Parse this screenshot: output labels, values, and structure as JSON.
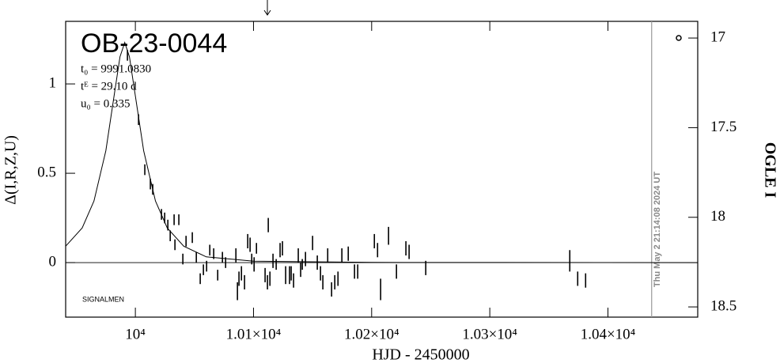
{
  "chart_data": {
    "type": "scatter",
    "title": "OB-23-0044",
    "params": [
      "t₀ = 9991.0830",
      "tᴱ = 29.10 d",
      "u₀ = 0.335"
    ],
    "annotation": "SIGNALMEN",
    "timestamp": "Thu May  2 21:14:08 2024 UT",
    "x_label": "HJD  -  2450000",
    "y_label": "Δ(I,R,Z,U)",
    "y2_label": "OGLE I",
    "xlim": [
      9941,
      10476
    ],
    "xticks": [
      {
        "value": 10000,
        "label": "10⁴"
      },
      {
        "value": 10100,
        "label": "1.01×10⁴"
      },
      {
        "value": 10200,
        "label": "1.02×10⁴"
      },
      {
        "value": 10300,
        "label": "1.03×10⁴"
      },
      {
        "value": 10400,
        "label": "1.04×10⁴"
      }
    ],
    "ylim": [
      -0.305,
      1.35
    ],
    "yticks": [
      0,
      0.5,
      1
    ],
    "y2lim": [
      16.907,
      18.557
    ],
    "y2ticks": [
      17,
      17.5,
      18,
      18.5
    ],
    "grid": false,
    "color": "#000000",
    "now_line": 10437,
    "x": [
      9993.3,
      10002.7,
      10008,
      10012.7,
      10014.7,
      10022.1,
      10024.8,
      10027.5,
      10029.5,
      10032.8,
      10033.5,
      10036.8,
      10040.2,
      10042.9,
      10048.2,
      10051.6,
      10054.9,
      10057.6,
      10060.3,
      10063,
      10066.3,
      10069.7,
      10073.7,
      10076.4,
      10085.1,
      10086.4,
      10087.7,
      10089.8,
      10092.4,
      10095.1,
      10097.1,
      10098.5,
      10100.5,
      10102.5,
      10109.8,
      10111.8,
      10112.5,
      10113.9,
      10116.5,
      10119.2,
      10122.5,
      10124.5,
      10127.2,
      10130.5,
      10131.9,
      10133.9,
      10137.9,
      10139.9,
      10141.3,
      10144,
      10150,
      10154,
      10156.7,
      10158.7,
      10162.8,
      10166.1,
      10168.8,
      10171.5,
      10174.8,
      10180.2,
      10185.5,
      10188.2,
      10202.3,
      10205,
      10207.6,
      10214.3,
      10221,
      10229,
      10231.7,
      10245.8,
      10367.7,
      10374.4,
      10381.1
    ],
    "values": [
      1.16,
      0.8,
      0.52,
      0.44,
      0.41,
      0.27,
      0.25,
      0.21,
      0.15,
      0.24,
      0.1,
      0.24,
      0.02,
      0.12,
      0.14,
      0.03,
      -0.09,
      -0.04,
      -0.02,
      0.07,
      0.05,
      -0.07,
      0.03,
      0,
      0.04,
      -0.16,
      -0.09,
      -0.06,
      -0.11,
      0.12,
      0.1,
      0.02,
      -0.01,
      0.08,
      -0.07,
      -0.11,
      0.21,
      -0.09,
      0.01,
      -0.01,
      0.07,
      0.08,
      -0.07,
      -0.07,
      -0.06,
      -0.1,
      0.04,
      -0.04,
      -0.01,
      0.02,
      0.11,
      0,
      -0.06,
      -0.11,
      0.04,
      -0.15,
      -0.11,
      -0.09,
      0.04,
      0.05,
      -0.05,
      -0.05,
      0.12,
      0.07,
      -0.15,
      0.15,
      -0.05,
      0.08,
      0.06,
      -0.03,
      0.01,
      -0.09,
      -0.1
    ],
    "errors": [
      0.03,
      0.03,
      0.03,
      0.03,
      0.03,
      0.03,
      0.03,
      0.03,
      0.03,
      0.03,
      0.03,
      0.03,
      0.03,
      0.03,
      0.03,
      0.03,
      0.03,
      0.03,
      0.03,
      0.03,
      0.03,
      0.03,
      0.03,
      0.03,
      0.04,
      0.05,
      0.04,
      0.04,
      0.04,
      0.04,
      0.04,
      0.03,
      0.04,
      0.03,
      0.04,
      0.04,
      0.04,
      0.04,
      0.04,
      0.03,
      0.04,
      0.04,
      0.05,
      0.05,
      0.04,
      0.04,
      0.04,
      0.04,
      0.03,
      0.04,
      0.04,
      0.04,
      0.04,
      0.04,
      0.04,
      0.04,
      0.04,
      0.04,
      0.04,
      0.04,
      0.04,
      0.04,
      0.04,
      0.04,
      0.06,
      0.05,
      0.04,
      0.04,
      0.04,
      0.04,
      0.06,
      0.04,
      0.04
    ],
    "model": {
      "x": [
        9941,
        9955,
        9965,
        9975,
        9983,
        9987,
        9991,
        9995,
        9999,
        10007,
        10017,
        10027,
        10041,
        10060,
        10100,
        10200,
        10476
      ],
      "values": [
        0.092,
        0.194,
        0.345,
        0.626,
        0.977,
        1.152,
        1.232,
        1.152,
        0.977,
        0.626,
        0.345,
        0.194,
        0.092,
        0.032,
        0.008,
        0.001,
        0
      ]
    }
  }
}
